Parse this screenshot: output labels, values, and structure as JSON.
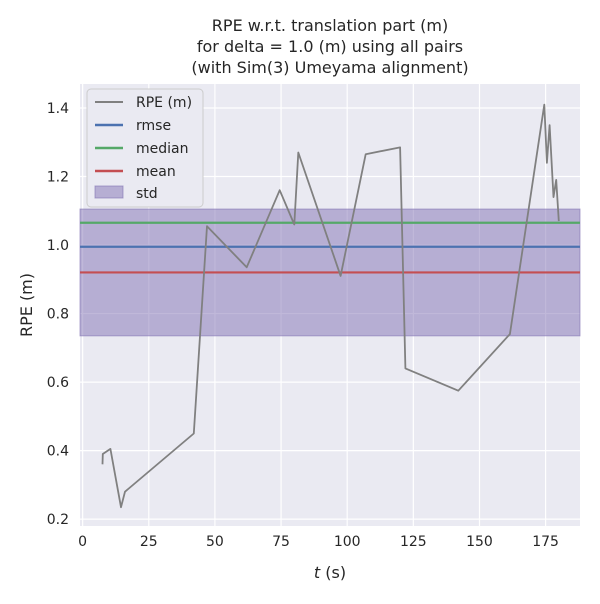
{
  "chart_data": {
    "type": "line",
    "title_lines": [
      "RPE w.r.t. translation part (m)",
      "for delta = 1.0 (m) using all pairs",
      "(with Sim(3) Umeyama alignment)"
    ],
    "xlabel_var": "t",
    "xlabel_unit": " (s)",
    "ylabel": "RPE (m)",
    "xlim": [
      -1,
      188
    ],
    "ylim": [
      0.18,
      1.47
    ],
    "xticks": [
      0,
      25,
      50,
      75,
      100,
      125,
      150,
      175
    ],
    "yticks": [
      0.2,
      0.4,
      0.6,
      0.8,
      1.0,
      1.2,
      1.4
    ],
    "ytick_labels": [
      "0.2",
      "0.4",
      "0.6",
      "0.8",
      "1.0",
      "1.2",
      "1.4"
    ],
    "grid": true,
    "legend_position": "top-left",
    "series": [
      {
        "name": "RPE (m)",
        "color": "#808080",
        "x": [
          7.5,
          7.6,
          10.5,
          14.5,
          16,
          42,
          47,
          62,
          74.5,
          80,
          81.5,
          97.5,
          107,
          120,
          122,
          142,
          161.5,
          174.5,
          175.5,
          176.5,
          178,
          179,
          180
        ],
        "y": [
          0.36,
          0.39,
          0.405,
          0.235,
          0.28,
          0.45,
          1.055,
          0.935,
          1.16,
          1.06,
          1.27,
          0.91,
          1.265,
          1.285,
          0.64,
          0.575,
          0.74,
          1.41,
          1.24,
          1.35,
          1.14,
          1.19,
          1.07
        ]
      }
    ],
    "statistics": [
      {
        "name": "rmse",
        "value": 0.995,
        "color": "#4c72b0"
      },
      {
        "name": "median",
        "value": 1.065,
        "color": "#55a868"
      },
      {
        "name": "mean",
        "value": 0.92,
        "color": "#c44e52"
      }
    ],
    "std_band": {
      "name": "std",
      "lower": 0.735,
      "upper": 1.105,
      "color": "#8172b3"
    }
  }
}
